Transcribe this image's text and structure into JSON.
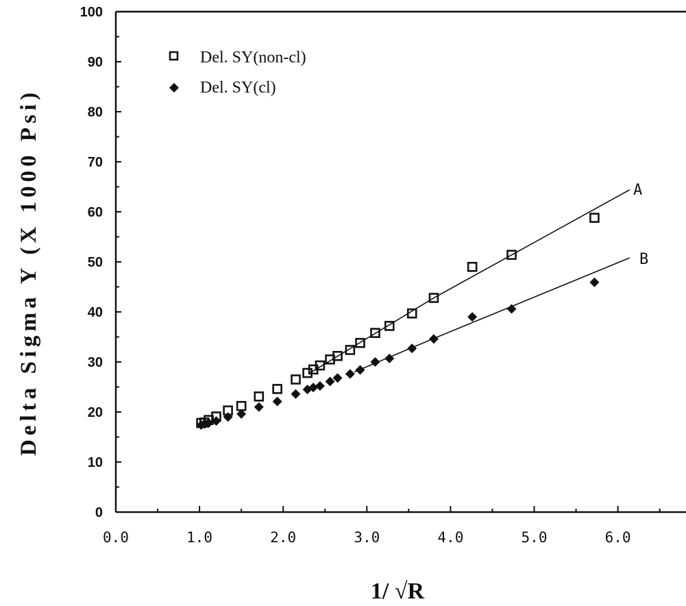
{
  "chart_data": {
    "type": "scatter",
    "title": "",
    "xlabel": "1/ √R",
    "ylabel": "Delta Sigma Y (X 1000 Psi)",
    "xlim": [
      0.0,
      7.0
    ],
    "ylim": [
      0,
      100
    ],
    "xticks": [
      "0.0",
      "1.0",
      "2.0",
      "3.0",
      "4.0",
      "5.0",
      "6.0"
    ],
    "yticks": [
      "0",
      "10",
      "20",
      "30",
      "40",
      "50",
      "60",
      "70",
      "80",
      "90",
      "100"
    ],
    "grid": false,
    "legend_position": "top-left",
    "series": [
      {
        "name": "Del. SY(non-cl)",
        "marker": "open-square",
        "color": "#111111",
        "x": [
          1.02,
          1.06,
          1.11,
          1.2,
          1.34,
          1.5,
          1.71,
          1.93,
          2.15,
          2.29,
          2.36,
          2.44,
          2.56,
          2.65,
          2.8,
          2.92,
          3.1,
          3.27,
          3.54,
          3.8,
          4.26,
          4.73,
          5.72
        ],
        "y": [
          17.8,
          17.9,
          18.4,
          19.1,
          20.3,
          21.2,
          23.1,
          24.6,
          26.5,
          27.8,
          28.5,
          29.3,
          30.5,
          31.2,
          32.4,
          33.8,
          35.8,
          37.2,
          39.7,
          42.8,
          49.0,
          51.4,
          58.8
        ]
      },
      {
        "name": "Del. SY(cl)",
        "marker": "filled-diamond",
        "color": "#111111",
        "x": [
          1.02,
          1.06,
          1.11,
          1.2,
          1.34,
          1.5,
          1.71,
          1.93,
          2.15,
          2.29,
          2.36,
          2.44,
          2.56,
          2.65,
          2.8,
          2.92,
          3.1,
          3.27,
          3.54,
          3.8,
          4.26,
          4.73,
          5.72
        ],
        "y": [
          17.4,
          17.6,
          17.8,
          18.2,
          19.0,
          19.6,
          21.0,
          22.1,
          23.6,
          24.5,
          24.9,
          25.2,
          26.1,
          26.8,
          27.6,
          28.4,
          30.0,
          30.7,
          32.7,
          34.6,
          39.0,
          40.6,
          45.9
        ]
      }
    ],
    "fit_lines": [
      {
        "label": "A",
        "series": "Del. SY(non-cl)",
        "segments": [
          [
            2.3,
            27.6
          ],
          [
            3.8,
            42.8
          ],
          [
            6.14,
            64.4
          ]
        ]
      },
      {
        "label": "B",
        "series": "Del. SY(cl)",
        "segments": [
          [
            2.85,
            28.0
          ],
          [
            3.8,
            34.7
          ],
          [
            6.14,
            50.8
          ]
        ]
      }
    ]
  }
}
